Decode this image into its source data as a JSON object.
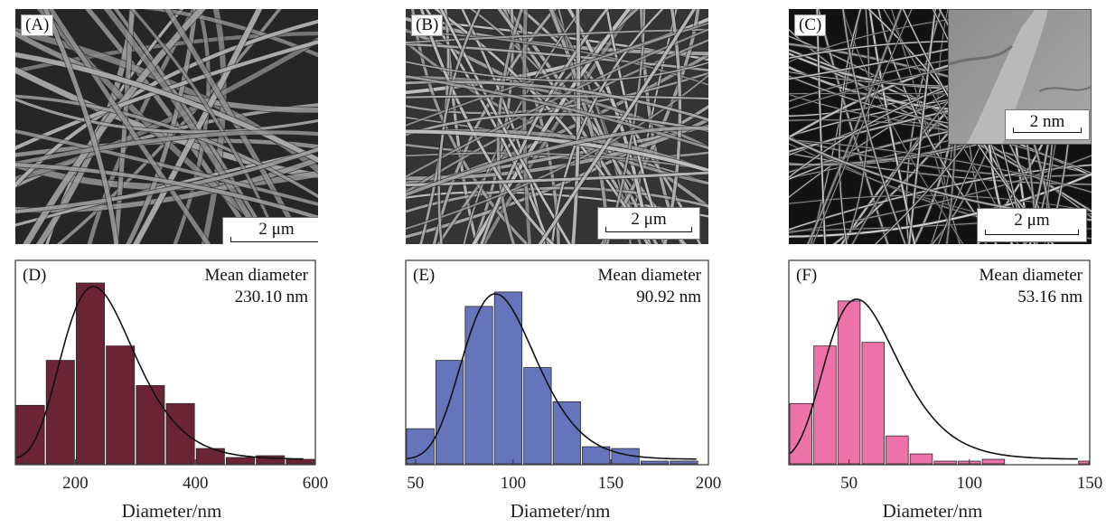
{
  "panels": [
    {
      "tag": "(A)",
      "scale": "2 μm"
    },
    {
      "tag": "(B)",
      "scale": "2 μm"
    },
    {
      "tag": "(C)",
      "scale": "2 μm",
      "inset_scale": "2 nm"
    }
  ],
  "colors": {
    "D": "#6b2336",
    "E": "#6674bb",
    "F": "#ee72aa"
  },
  "chart_data": [
    {
      "type": "bar",
      "tag": "(D)",
      "annotation": [
        "Mean diameter",
        "230.10 nm"
      ],
      "xlabel": "Diameter/nm",
      "xlim": [
        100,
        600
      ],
      "ylim": [
        0,
        100
      ],
      "xticks": [
        200,
        400,
        600
      ],
      "bin_width": 50,
      "bin_centers": [
        125,
        175,
        225,
        275,
        325,
        375,
        425,
        475,
        525,
        575
      ],
      "values": [
        32,
        57,
        100,
        65,
        43,
        33,
        8,
        3,
        4,
        2
      ],
      "fit_mean": 230.1,
      "fit_peak": 96
    },
    {
      "type": "bar",
      "tag": "(E)",
      "annotation": [
        "Mean diameter",
        "90.92 nm"
      ],
      "xlabel": "Diameter/nm",
      "xlim": [
        45,
        200
      ],
      "ylim": [
        0,
        100
      ],
      "xticks": [
        50,
        100,
        150,
        200
      ],
      "bin_width": 15,
      "bin_centers": [
        52.5,
        67.5,
        82.5,
        97.5,
        112.5,
        127.5,
        142.5,
        157.5,
        172.5,
        187.5
      ],
      "values": [
        19,
        57,
        87,
        95,
        53,
        34,
        9,
        8,
        1,
        1
      ],
      "fit_mean": 90.92,
      "fit_peak": 92
    },
    {
      "type": "bar",
      "tag": "(F)",
      "annotation": [
        "Mean diameter",
        "53.16 nm"
      ],
      "xlabel": "Diameter/nm",
      "xlim": [
        25,
        150
      ],
      "ylim": [
        0,
        100
      ],
      "xticks": [
        50,
        100,
        150
      ],
      "bin_width": 10,
      "bin_centers": [
        30,
        40,
        50,
        60,
        70,
        80,
        90,
        100,
        110,
        120,
        130,
        140,
        150
      ],
      "values": [
        33,
        65,
        90,
        67,
        15,
        5,
        1,
        1,
        2,
        0,
        0,
        0,
        1
      ],
      "fit_mean": 53.16,
      "fit_peak": 89
    }
  ]
}
